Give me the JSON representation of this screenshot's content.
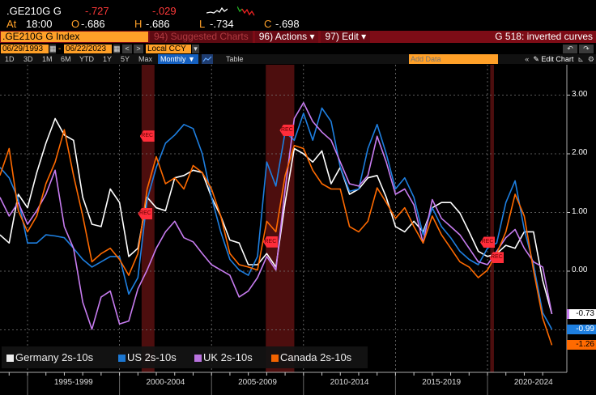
{
  "quote": {
    "ticker": ".GE210G G",
    "last": "-.727",
    "change": "-.029",
    "at_label": "At",
    "time": "18:00",
    "open_label": "O",
    "open": "-.686",
    "high_label": "H",
    "high": "-.686",
    "low_label": "L",
    "low": "-.734",
    "close_label": "C",
    "close": "-.698"
  },
  "toolbar": {
    "security": ".GE210G G Index",
    "suggested": "94) Suggested Charts",
    "actions": "96) Actions ▾",
    "edit": "97) Edit ▾",
    "title": "G 518: inverted curves"
  },
  "dates": {
    "start": "06/29/1993",
    "sep": "-",
    "end": "06/22/2023",
    "currency": "Local CCY",
    "prev": "<",
    "next": ">",
    "undo": "↶",
    "redo": "↷"
  },
  "ranges": [
    "1D",
    "3D",
    "1M",
    "6M",
    "YTD",
    "1Y",
    "5Y",
    "Max"
  ],
  "period": "Monthly ▼",
  "table_label": "Table",
  "add_data_placeholder": "Add Data",
  "collapse": "«",
  "edit_chart": "✎ Edit Chart",
  "colors": {
    "germany": "#ffffff",
    "us": "#1e7fe0",
    "uk": "#c77cf0",
    "canada": "#ff6a00",
    "recession": "#5a1010",
    "rec_marker": "#ff2d3a"
  },
  "chart_data": {
    "type": "line",
    "title": "G 518: inverted curves",
    "x_start": 1993.5,
    "x_step": 0.5,
    "ylim": [
      -1.6,
      3.4
    ],
    "yticks": [
      3,
      2,
      1,
      0,
      -1
    ],
    "ytick_labels": [
      "3.00",
      "2.00",
      "1.00",
      "0.00",
      ""
    ],
    "period_boundaries": [
      1995,
      2000,
      2005,
      2010,
      2015,
      2020
    ],
    "period_labels": [
      "1995-1999",
      "2000-2004",
      "2005-2009",
      "2010-2014",
      "2015-2019",
      "2020-2024"
    ],
    "recessions": [
      [
        2001.2,
        2001.9
      ],
      [
        2007.95,
        2009.5
      ],
      [
        2020.15,
        2020.35
      ]
    ],
    "rec_marker_text": "REC",
    "rec_markers": [
      {
        "x": 2001.5,
        "y": 2.3
      },
      {
        "x": 2001.4,
        "y": 0.98
      },
      {
        "x": 2009.1,
        "y": 2.4
      },
      {
        "x": 2008.2,
        "y": 0.5
      },
      {
        "x": 2020.0,
        "y": 0.49
      },
      {
        "x": 2020.5,
        "y": 0.23
      }
    ],
    "legend_position": "bottom-left",
    "grid": true,
    "series": [
      {
        "name": "Germany 2s-10s",
        "key": "germany",
        "last_label": "-0.73",
        "values": [
          0.62,
          0.48,
          1.31,
          1.08,
          1.68,
          2.18,
          2.6,
          2.32,
          2.23,
          1.26,
          0.8,
          0.76,
          1.4,
          1.17,
          0.25,
          0.39,
          1.26,
          1.08,
          1.03,
          1.59,
          1.63,
          1.72,
          1.68,
          1.26,
          0.94,
          0.53,
          0.48,
          0.11,
          0.11,
          0.3,
          0.07,
          1.17,
          2.09,
          2.0,
          1.86,
          2.05,
          1.49,
          1.77,
          1.31,
          1.4,
          1.59,
          1.63,
          1.26,
          0.76,
          0.67,
          0.85,
          0.67,
          1.08,
          1.17,
          1.17,
          0.99,
          0.67,
          0.34,
          0.25,
          0.3,
          0.44,
          0.39,
          0.67,
          0.67,
          -0.16,
          -0.73
        ]
      },
      {
        "name": "US 2s-10s",
        "key": "us",
        "last_label": "-0.99",
        "values": [
          1.77,
          1.59,
          1.22,
          0.48,
          0.48,
          0.62,
          0.6,
          0.57,
          0.39,
          0.2,
          0.07,
          0.16,
          0.25,
          0.25,
          -0.39,
          -0.11,
          1.22,
          1.77,
          2.18,
          2.32,
          2.5,
          2.43,
          2.0,
          1.26,
          0.67,
          0.2,
          0.02,
          -0.07,
          0.25,
          1.86,
          1.45,
          2.37,
          2.23,
          2.69,
          2.23,
          2.78,
          2.55,
          1.77,
          1.36,
          1.4,
          2.09,
          2.5,
          2.0,
          1.4,
          1.59,
          1.26,
          0.62,
          1.08,
          0.76,
          0.57,
          0.34,
          0.2,
          0.11,
          0.39,
          0.48,
          1.17,
          1.54,
          0.71,
          0.11,
          -0.71,
          -0.99
        ]
      },
      {
        "name": "UK 2s-10s",
        "key": "uk",
        "last_label": "",
        "values": [
          1.26,
          0.94,
          1.17,
          0.8,
          1.03,
          1.31,
          1.72,
          0.76,
          0.39,
          -0.53,
          -0.99,
          -0.44,
          -0.34,
          -0.9,
          -0.85,
          -0.3,
          0.02,
          0.39,
          0.67,
          0.85,
          0.57,
          0.5,
          0.3,
          0.11,
          0.02,
          -0.07,
          -0.44,
          -0.34,
          -0.11,
          0.25,
          0.02,
          1.4,
          2.6,
          2.87,
          2.55,
          2.37,
          2.23,
          1.86,
          1.49,
          1.45,
          1.63,
          2.3,
          1.86,
          1.31,
          1.4,
          1.13,
          0.48,
          1.22,
          0.9,
          0.76,
          0.62,
          0.39,
          0.16,
          0.11,
          0.34,
          0.57,
          0.71,
          0.39,
          0.16,
          0.07,
          -0.73
        ]
      },
      {
        "name": "Canada 2s-10s",
        "key": "canada",
        "last_label": "-1.26",
        "values": [
          1.63,
          2.09,
          1.03,
          0.67,
          0.94,
          1.49,
          1.86,
          2.41,
          1.63,
          0.94,
          0.16,
          0.3,
          0.39,
          0.2,
          -0.07,
          0.3,
          1.4,
          1.95,
          1.49,
          1.59,
          1.4,
          1.8,
          1.68,
          1.4,
          0.94,
          0.3,
          0.11,
          0.07,
          0.02,
          0.85,
          0.67,
          1.63,
          2.14,
          2.09,
          1.72,
          1.49,
          1.4,
          1.4,
          0.76,
          0.67,
          0.85,
          1.42,
          1.17,
          0.9,
          1.08,
          0.76,
          0.48,
          0.94,
          0.62,
          0.39,
          0.16,
          0.07,
          -0.11,
          0.02,
          0.3,
          0.67,
          1.31,
          0.94,
          0.02,
          -0.8,
          -1.26
        ]
      }
    ]
  }
}
